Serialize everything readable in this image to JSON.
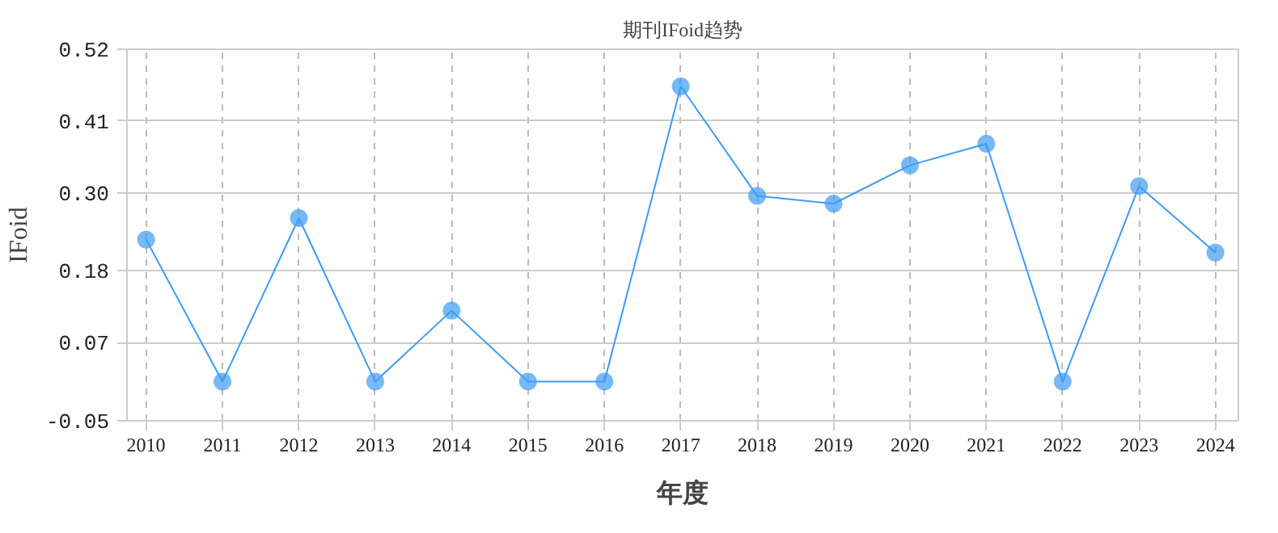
{
  "chart_data": {
    "type": "line",
    "title": "期刊IFoid趋势",
    "xlabel": "年度",
    "ylabel": "IFoid",
    "categories": [
      "2010",
      "2011",
      "2012",
      "2013",
      "2014",
      "2015",
      "2016",
      "2017",
      "2018",
      "2019",
      "2020",
      "2021",
      "2022",
      "2023",
      "2024"
    ],
    "series": [
      {
        "color": "#3d9bf5",
        "values": [
          0.228,
          0.01,
          0.261,
          0.01,
          0.119,
          0.01,
          0.01,
          0.463,
          0.295,
          0.283,
          0.342,
          0.375,
          0.01,
          0.31,
          0.208
        ]
      }
    ],
    "ylim": [
      -0.05,
      0.52
    ],
    "yticks": [
      -0.05,
      {
        "value": 0.07,
        "label": "0.07"
      },
      0.18,
      {
        "value": 0.3,
        "label": "0.30"
      },
      0.41,
      0.52
    ],
    "grid": true,
    "marker": "circle",
    "line_style": "solid"
  }
}
